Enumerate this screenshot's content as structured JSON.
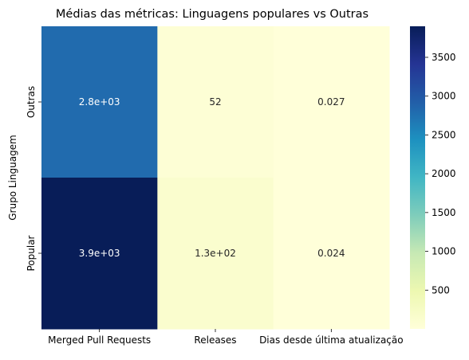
{
  "chart_data": {
    "type": "heatmap",
    "title": "Médias das métricas: Linguagens populares vs Outras",
    "xlabel": "",
    "ylabel": "Grupo Linguagem",
    "columns": [
      "Merged Pull Requests",
      "Releases",
      "Dias desde última atualização"
    ],
    "rows": [
      "Outras",
      "Popular"
    ],
    "values": [
      [
        2800,
        52,
        0.027
      ],
      [
        3900,
        130,
        0.024
      ]
    ],
    "annotations": [
      [
        "2.8e+03",
        "52",
        "0.027"
      ],
      [
        "3.9e+03",
        "1.3e+02",
        "0.024"
      ]
    ],
    "colormap": "YlGnBu",
    "vmin": 0.024,
    "vmax": 3900,
    "colorbar_ticks": [
      500,
      1000,
      1500,
      2000,
      2500,
      3000,
      3500
    ],
    "colorbar_tick_labels": [
      "500",
      "1000",
      "1500",
      "2000",
      "2500",
      "3000",
      "3500"
    ],
    "colormap_stops": [
      "#ffffd9",
      "#edf8b1",
      "#c7e9b4",
      "#7fcdbb",
      "#41b6c4",
      "#1d91c0",
      "#225ea8",
      "#253494",
      "#081d58"
    ]
  }
}
